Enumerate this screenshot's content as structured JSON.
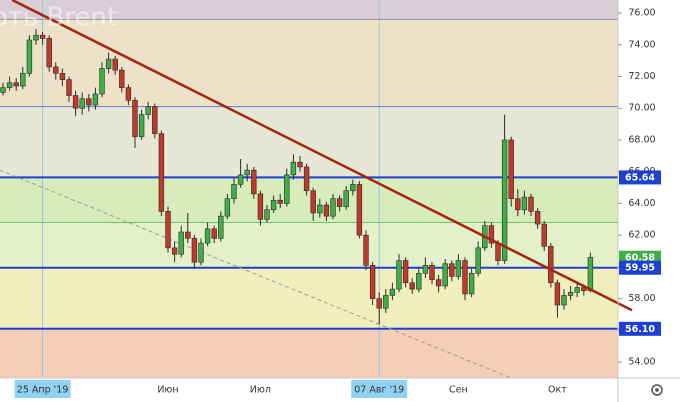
{
  "chart_data": {
    "type": "candlestick",
    "title": "Нефть Brent",
    "categories": [
      null,
      null,
      null,
      null,
      null,
      null,
      "25 Апр '19",
      null,
      null,
      null,
      null,
      null,
      null,
      null,
      null,
      null,
      null,
      null,
      null,
      null,
      null,
      null,
      null,
      null,
      null,
      "Июн",
      null,
      null,
      null,
      null,
      null,
      null,
      null,
      null,
      null,
      null,
      null,
      null,
      null,
      "Июл",
      null,
      null,
      null,
      null,
      null,
      null,
      null,
      null,
      null,
      null,
      null,
      null,
      null,
      null,
      null,
      null,
      null,
      "07 Авг '19",
      null,
      null,
      null,
      null,
      null,
      null,
      null,
      null,
      null,
      null,
      null,
      "Сен",
      null,
      null,
      null,
      null,
      null,
      null,
      null,
      null,
      null,
      null,
      null,
      null,
      null,
      null,
      "Окт",
      null,
      null,
      null,
      null,
      null
    ],
    "open": [
      71.0,
      71.3,
      71.6,
      71.4,
      72.2,
      74.3,
      74.6,
      74.4,
      72.6,
      72.2,
      71.8,
      70.8,
      70.0,
      70.6,
      70.2,
      70.9,
      72.5,
      73.1,
      72.4,
      71.3,
      70.5,
      68.2,
      69.6,
      70.1,
      68.4,
      63.5,
      61.2,
      60.8,
      62.2,
      61.8,
      60.3,
      61.5,
      62.4,
      61.8,
      63.2,
      64.3,
      65.2,
      65.8,
      66.1,
      64.6,
      63.0,
      63.6,
      64.2,
      64.0,
      65.8,
      66.6,
      66.3,
      64.8,
      63.4,
      63.9,
      63.2,
      64.3,
      63.8,
      64.8,
      65.2,
      62.0,
      60.1,
      58.0,
      57.4,
      58.2,
      58.6,
      60.4,
      59.0,
      58.6,
      59.6,
      60.1,
      59.2,
      58.8,
      60.2,
      59.4,
      60.4,
      58.3,
      59.6,
      61.2,
      62.6,
      61.5,
      60.4,
      68.0,
      64.3,
      63.6,
      64.4,
      63.5,
      62.7,
      61.3,
      59.0,
      57.6,
      58.2,
      58.4,
      58.7,
      58.5
    ],
    "high": [
      71.6,
      72.0,
      71.9,
      72.6,
      74.6,
      75.0,
      74.8,
      74.6,
      72.9,
      72.5,
      72.0,
      71.1,
      71.0,
      70.9,
      71.3,
      72.9,
      73.5,
      73.3,
      72.6,
      71.5,
      70.7,
      69.9,
      70.4,
      70.3,
      68.6,
      63.8,
      61.6,
      62.6,
      63.4,
      62.0,
      61.8,
      62.8,
      62.6,
      63.5,
      64.6,
      65.6,
      66.8,
      66.5,
      66.3,
      64.8,
      63.9,
      64.5,
      64.6,
      66.2,
      67.1,
      67.0,
      66.5,
      65.0,
      64.3,
      64.1,
      64.6,
      64.5,
      65.1,
      65.5,
      65.4,
      62.3,
      60.3,
      58.4,
      58.6,
      59.0,
      60.8,
      60.6,
      59.3,
      59.9,
      60.6,
      60.3,
      59.5,
      60.5,
      60.4,
      60.8,
      60.6,
      59.9,
      61.6,
      62.9,
      62.8,
      61.7,
      69.6,
      68.2,
      64.9,
      64.8,
      64.6,
      63.7,
      62.9,
      61.5,
      59.2,
      58.6,
      58.8,
      59.0,
      58.9,
      60.9
    ],
    "low": [
      70.8,
      71.1,
      71.1,
      71.2,
      72.0,
      74.0,
      74.0,
      72.3,
      71.8,
      71.4,
      70.4,
      69.5,
      69.6,
      69.8,
      69.9,
      70.7,
      72.2,
      72.1,
      71.0,
      70.2,
      67.5,
      68.0,
      69.3,
      68.1,
      63.2,
      60.9,
      60.3,
      60.6,
      61.5,
      59.9,
      60.1,
      61.3,
      61.5,
      61.6,
      63.0,
      64.0,
      65.0,
      65.4,
      64.3,
      62.6,
      62.8,
      63.4,
      63.7,
      63.8,
      65.5,
      66.0,
      64.5,
      62.9,
      63.1,
      62.9,
      63.0,
      63.5,
      63.6,
      64.5,
      61.8,
      59.8,
      57.6,
      56.4,
      57.1,
      57.9,
      58.4,
      58.7,
      58.3,
      58.4,
      59.3,
      58.9,
      58.4,
      58.6,
      59.1,
      59.2,
      57.9,
      58.1,
      59.4,
      61.0,
      61.2,
      60.1,
      60.2,
      63.8,
      63.2,
      63.3,
      63.2,
      62.4,
      61.0,
      58.7,
      56.8,
      57.3,
      57.9,
      58.1,
      58.2,
      58.4
    ],
    "close": [
      71.3,
      71.6,
      71.4,
      72.2,
      74.3,
      74.6,
      74.4,
      72.6,
      72.2,
      71.8,
      70.8,
      70.0,
      70.6,
      70.2,
      70.9,
      72.5,
      73.1,
      72.4,
      71.3,
      70.5,
      68.2,
      69.6,
      70.1,
      68.4,
      63.5,
      61.2,
      60.8,
      62.2,
      61.8,
      60.3,
      61.5,
      62.4,
      61.8,
      63.2,
      64.3,
      65.2,
      65.8,
      66.1,
      64.6,
      63.0,
      63.6,
      64.2,
      64.0,
      65.8,
      66.6,
      66.3,
      64.8,
      63.4,
      63.9,
      63.2,
      64.3,
      63.8,
      64.8,
      65.2,
      62.0,
      60.1,
      58.0,
      57.4,
      58.2,
      58.6,
      60.4,
      59.0,
      58.6,
      59.6,
      60.1,
      59.2,
      58.8,
      60.2,
      59.4,
      60.4,
      58.3,
      59.6,
      61.2,
      62.6,
      61.5,
      60.4,
      68.0,
      64.3,
      63.6,
      64.4,
      63.5,
      62.7,
      61.3,
      59.0,
      57.6,
      58.2,
      58.4,
      58.7,
      58.5,
      60.6
    ],
    "up_color": "#3fae49",
    "down_color": "#c0392b",
    "ylim": [
      53,
      76.82
    ],
    "yticks": [
      {
        "value": 54,
        "label": "54.00"
      },
      {
        "value": 56,
        "label": "56.00"
      },
      {
        "value": 58,
        "label": "58.00"
      },
      {
        "value": 60,
        "label": "60.00"
      },
      {
        "value": 62,
        "label": "62.00"
      },
      {
        "value": 64,
        "label": "64.00"
      },
      {
        "value": 66,
        "label": "66.00"
      },
      {
        "value": 68,
        "label": "68.00"
      },
      {
        "value": 70,
        "label": "70.00"
      },
      {
        "value": 72,
        "label": "72.00"
      },
      {
        "value": 74,
        "label": "74.00"
      },
      {
        "value": 76,
        "label": "76.00"
      }
    ],
    "zones": [
      {
        "from": 75.6,
        "to": 76.82,
        "color": "#d9cdd6"
      },
      {
        "from": 70.1,
        "to": 75.6,
        "color": "#ede2c7"
      },
      {
        "from": 65.64,
        "to": 70.1,
        "color": "#e6e8d5"
      },
      {
        "from": 62.8,
        "to": 65.64,
        "color": "#d7ebbb"
      },
      {
        "from": 59.95,
        "to": 62.8,
        "color": "#e4f0c8"
      },
      {
        "from": 56.1,
        "to": 59.95,
        "color": "#f2efbe"
      },
      {
        "from": 53,
        "to": 56.1,
        "color": "#f4cfb5"
      }
    ],
    "levels": [
      {
        "value": 75.6,
        "color": "#9a8f9e",
        "width": 1
      },
      {
        "value": 70.1,
        "color": "#5b7fd0",
        "width": 1
      },
      {
        "value": 65.64,
        "color": "#1f3fd1",
        "width": 2
      },
      {
        "value": 62.8,
        "color": "#6ac26a",
        "width": 1
      },
      {
        "value": 59.95,
        "color": "#1f3fd1",
        "width": 2
      },
      {
        "value": 56.1,
        "color": "#1f3fd1",
        "width": 2
      }
    ],
    "price_labels": [
      {
        "value": 65.64,
        "label": "65.64",
        "color": "#1f3fd1"
      },
      {
        "value": 60.58,
        "label": "60.58",
        "color": "#3fae49"
      },
      {
        "value": 59.95,
        "label": "59.95",
        "color": "#1f3fd1"
      },
      {
        "value": 56.1,
        "label": "56.10",
        "color": "#1f3fd1"
      }
    ],
    "trend_lines": [
      {
        "x": [
          1.4,
          95.3
        ],
        "y": [
          76.82,
          57.27
        ],
        "color": "#a3250f",
        "width": 2.5,
        "dash": false
      },
      {
        "x": [
          -0.5,
          77
        ],
        "y": [
          66.1,
          53
        ],
        "color": "#9a9a9a",
        "width": 1,
        "dash": true
      }
    ],
    "markers": [
      6,
      57
    ]
  }
}
